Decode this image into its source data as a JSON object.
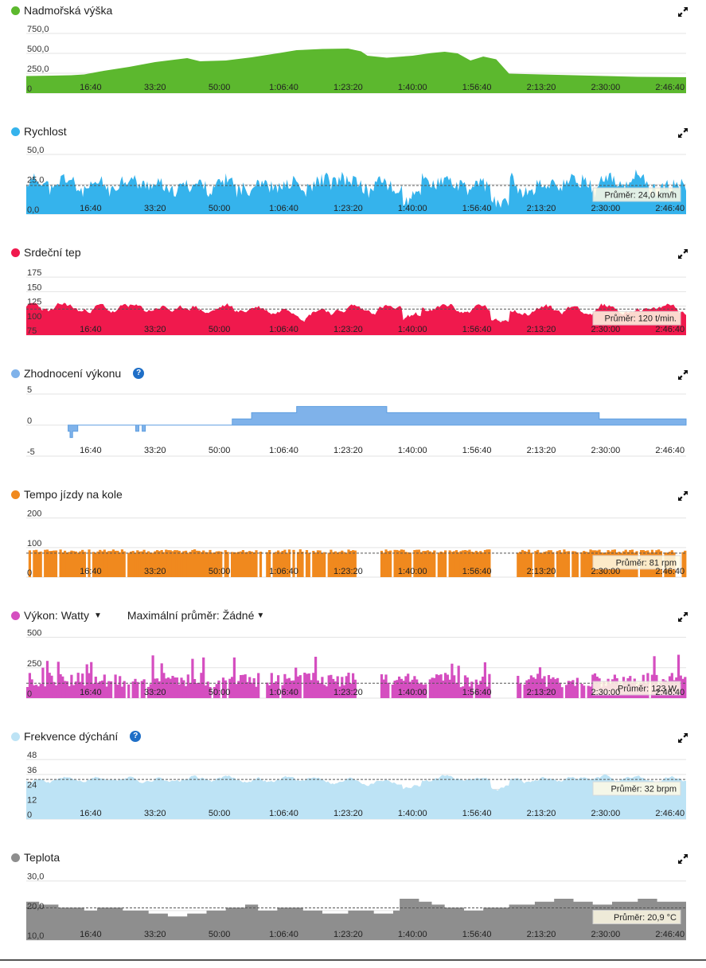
{
  "x_ticks": [
    "16:40",
    "33:20",
    "50:00",
    "1:06:40",
    "1:23:20",
    "1:40:00",
    "1:56:40",
    "2:13:20",
    "2:30:00",
    "2:46:40"
  ],
  "x_tick_seconds": [
    1000,
    2000,
    3000,
    4000,
    5000,
    6000,
    7000,
    8000,
    9000,
    10000
  ],
  "duration_seconds": 10250,
  "chart_data": [
    {
      "id": "elevation",
      "type": "area",
      "title": "Nadmořská výška",
      "color": "#5cb82e",
      "yticks": [
        "750,0",
        "500,0",
        "250,0",
        "0"
      ],
      "ytick_values": [
        750,
        500,
        250,
        0
      ],
      "ylim": [
        0,
        780
      ],
      "average_label": "",
      "average_value": null,
      "x": [
        0,
        400,
        700,
        900,
        1200,
        1600,
        2000,
        2300,
        2500,
        2700,
        3100,
        3500,
        3900,
        4200,
        4600,
        5000,
        5200,
        5300,
        5600,
        6000,
        6300,
        6500,
        6700,
        6900,
        7100,
        7300,
        7500,
        8000,
        8500,
        9000,
        9500,
        10250
      ],
      "values": [
        215,
        220,
        225,
        235,
        280,
        330,
        390,
        420,
        440,
        400,
        410,
        450,
        500,
        540,
        555,
        560,
        525,
        470,
        445,
        470,
        505,
        520,
        500,
        410,
        460,
        425,
        245,
        235,
        225,
        215,
        205,
        200
      ]
    },
    {
      "id": "speed",
      "type": "area",
      "title": "Rychlost",
      "color": "#35b3ec",
      "yticks": [
        "50,0",
        "25,0",
        "0,0"
      ],
      "ytick_values": [
        50,
        25,
        0
      ],
      "ylim": [
        0,
        52
      ],
      "average_label": "Průměr: 24,0 km/h",
      "average_value": 24,
      "base": 24,
      "amp": 9,
      "seed": 11,
      "spiky": true
    },
    {
      "id": "heart_rate",
      "type": "area",
      "title": "Srdeční tep",
      "color": "#f0194d",
      "yticks": [
        "175",
        "150",
        "125",
        "100",
        "75"
      ],
      "ytick_values": [
        175,
        150,
        125,
        100,
        75
      ],
      "ylim": [
        75,
        182
      ],
      "average_label": "Průměr: 120 t/min.",
      "average_value": 120,
      "base": 120,
      "amp": 14,
      "seed": 23,
      "spiky": false
    },
    {
      "id": "performance",
      "type": "step",
      "title": "Zhodnocení výkonu",
      "help": true,
      "color": "#7fb2ea",
      "yticks": [
        "5",
        "0",
        "-5"
      ],
      "ytick_values": [
        5,
        0,
        -5
      ],
      "ylim": [
        -5,
        5
      ],
      "average_label": "",
      "average_value": null,
      "x": [
        650,
        680,
        720,
        800,
        850,
        1700,
        1750,
        1800,
        1850,
        3200,
        3500,
        4200,
        5600,
        8900,
        10250
      ],
      "values": [
        -1,
        -2,
        -1,
        0,
        0,
        -1,
        0,
        -1,
        0,
        1,
        2,
        3,
        2,
        1,
        1
      ]
    },
    {
      "id": "cadence",
      "type": "bars",
      "title": "Tempo jízdy na kole",
      "color": "#f0891e",
      "yticks": [
        "200",
        "100",
        "0"
      ],
      "ytick_values": [
        200,
        100,
        0
      ],
      "ylim": [
        0,
        210
      ],
      "average_label": "Průměr: 81 rpm",
      "average_value": 81,
      "base": 88,
      "amp": 6,
      "seed": 37
    },
    {
      "id": "power",
      "type": "bars",
      "title": "Výkon: Watty",
      "dropdown": true,
      "extra_label": "Maximální průměr: Žádné",
      "color": "#d54ec0",
      "yticks": [
        "500",
        "250",
        "0"
      ],
      "ytick_values": [
        500,
        250,
        0
      ],
      "ylim": [
        0,
        510
      ],
      "average_label": "Průměr: 123 W",
      "average_value": 123,
      "base": 150,
      "amp": 60,
      "seed": 53
    },
    {
      "id": "respiration",
      "type": "area",
      "title": "Frekvence dýchání",
      "help": true,
      "color": "#bde3f5",
      "yticks": [
        "48",
        "36",
        "24",
        "12",
        "0"
      ],
      "ytick_values": [
        48,
        36,
        24,
        12,
        0
      ],
      "ylim": [
        0,
        50
      ],
      "average_label": "Průměr: 32 brpm",
      "average_value": 32,
      "base": 32,
      "amp": 4,
      "seed": 71,
      "spiky": false
    },
    {
      "id": "temperature",
      "type": "step",
      "title": "Teplota",
      "color": "#8e8e8e",
      "yticks": [
        "30,0",
        "20,0",
        "10,0"
      ],
      "ytick_values": [
        30,
        20,
        10
      ],
      "ylim": [
        10,
        31
      ],
      "average_label": "Průměr: 20,9 °C",
      "average_value": 20.9,
      "x": [
        0,
        200,
        500,
        900,
        1100,
        1500,
        1900,
        2200,
        2500,
        2800,
        3100,
        3400,
        3600,
        3900,
        4300,
        4600,
        5000,
        5400,
        5700,
        5800,
        6100,
        6300,
        6500,
        6800,
        7100,
        7500,
        7900,
        8200,
        8500,
        8800,
        9100,
        9500,
        9800,
        10250
      ],
      "values": [
        23,
        22,
        21,
        20,
        21,
        20,
        19,
        18,
        19,
        20,
        21,
        22,
        20,
        21,
        20,
        19,
        20,
        19,
        20,
        24,
        23,
        22,
        21,
        20,
        21,
        22,
        23,
        24,
        23,
        22,
        23,
        24,
        23,
        24
      ]
    }
  ]
}
